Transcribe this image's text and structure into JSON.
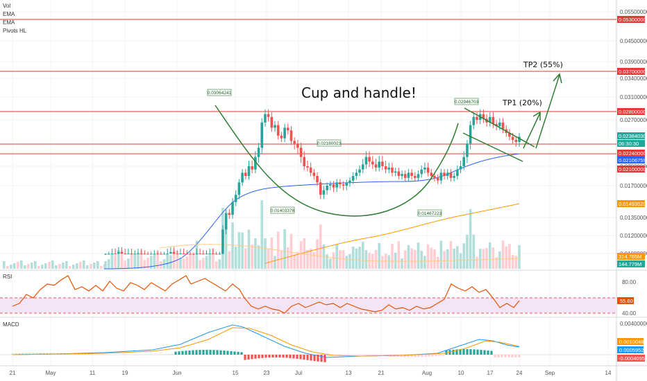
{
  "legend": {
    "main": [
      "Vol",
      "EMA",
      "EMA",
      "Pivots HL"
    ],
    "rsi": "RSI",
    "macd": "MACD"
  },
  "annotations": {
    "title": "Cup and handle!",
    "tp1": "TP1 (20%)",
    "tp2": "TP2 (55%)"
  },
  "colors": {
    "up": "#26a69a",
    "down": "#ef5350",
    "ema_fast": "#2962ff",
    "ema_slow": "#ff9800",
    "hline": "#e53935",
    "pattern": "#2e7d32",
    "rsi_line": "#e65100",
    "rsi_band": "#f3e5f5"
  },
  "chart_data": {
    "type": "candlestick",
    "x_ticks": [
      "21",
      "May",
      "11",
      "19",
      "Jun",
      "15",
      "23",
      "Jul",
      "13",
      "21",
      "Aug",
      "10",
      "17",
      "24",
      "Sep",
      "14"
    ],
    "y_ticks": [
      "0.05500000",
      "0.04500000",
      "0.03900000",
      "0.03400000",
      "0.03100000",
      "0.02700000",
      "0.02000000",
      "0.01700000",
      "0.01350000",
      "0.01200000",
      "0.01080000"
    ],
    "horizontal_levels": [
      "0.05300000",
      "0.03700000",
      "0.02800000",
      "0.02240000",
      "0.02100000"
    ],
    "price_badges": [
      {
        "label": "0.05300000",
        "color": "#e53935"
      },
      {
        "label": "0.03700000",
        "color": "#e53935"
      },
      {
        "label": "0.02800000",
        "color": "#e53935"
      },
      {
        "label": "0.02384030",
        "color": "#26a69a"
      },
      {
        "label": "06:30:30",
        "color": "#26a69a"
      },
      {
        "label": "0.02240000",
        "color": "#e53935"
      },
      {
        "label": "0.02106759",
        "color": "#2962ff"
      },
      {
        "label": "0.02100000",
        "color": "#e53935"
      },
      {
        "label": "0.01493520",
        "color": "#ff9800"
      },
      {
        "label": "314.765M",
        "color": "#ff9800"
      },
      {
        "label": "144.779M",
        "color": "#26a69a"
      }
    ],
    "pivot_labels": [
      "0.03064241",
      "0.01403378",
      "0.02180023",
      "0.02946703",
      "0.01467223"
    ],
    "closes": [
      0.0105,
      0.0106,
      0.0108,
      0.0107,
      0.0109,
      0.0108,
      0.0107,
      0.0108,
      0.0106,
      0.0107,
      0.0108,
      0.0107,
      0.0106,
      0.0105,
      0.0106,
      0.0107,
      0.0106,
      0.0105,
      0.0106,
      0.0108,
      0.0109,
      0.0107,
      0.0106,
      0.0108,
      0.0107,
      0.0106,
      0.0105,
      0.0104,
      0.0108,
      0.0107,
      0.0106,
      0.0107,
      0.0108,
      0.0106,
      0.0105,
      0.0106,
      0.0125,
      0.014,
      0.0138,
      0.0152,
      0.016,
      0.0175,
      0.019,
      0.0185,
      0.02,
      0.0195,
      0.021,
      0.022,
      0.0265,
      0.028,
      0.0275,
      0.0255,
      0.026,
      0.024,
      0.0235,
      0.0255,
      0.025,
      0.023,
      0.0225,
      0.022,
      0.021,
      0.02,
      0.0198,
      0.019,
      0.0185,
      0.0175,
      0.016,
      0.0165,
      0.017,
      0.0172,
      0.0168,
      0.0175,
      0.0172,
      0.017,
      0.0174,
      0.0178,
      0.0185,
      0.019,
      0.0195,
      0.0202,
      0.021,
      0.0205,
      0.0202,
      0.0198,
      0.0205,
      0.02,
      0.0195,
      0.0198,
      0.019,
      0.0192,
      0.0185,
      0.0188,
      0.0182,
      0.019,
      0.0185,
      0.0182,
      0.0188,
      0.0195,
      0.0198,
      0.019,
      0.0185,
      0.0182,
      0.0178,
      0.019,
      0.0185,
      0.019,
      0.0182,
      0.0185,
      0.0195,
      0.02,
      0.021,
      0.0225,
      0.026,
      0.0275,
      0.027,
      0.028,
      0.0272,
      0.0265,
      0.0275,
      0.0262,
      0.0258,
      0.0265,
      0.0252,
      0.0245,
      0.0238,
      0.0232,
      0.0228,
      0.0238
    ],
    "ylabel": "",
    "xlabel": ""
  }
}
